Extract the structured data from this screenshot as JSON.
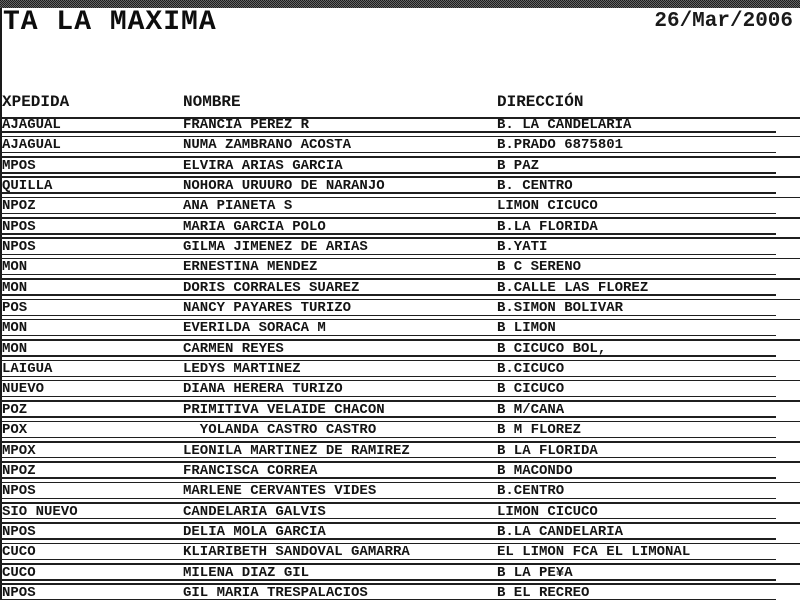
{
  "report": {
    "title": "TA LA MAXIMA",
    "date": "26/Mar/2006"
  },
  "table": {
    "columns": [
      "XPEDIDA",
      "NOMBRE",
      "DIRECCIÓN"
    ],
    "rows": [
      {
        "expedida": "AJAGUAL",
        "nombre": "FRANCIA PEREZ R",
        "direccion": "B. LA CANDELARIA"
      },
      {
        "expedida": "AJAGUAL",
        "nombre": "NUMA ZAMBRANO ACOSTA",
        "direccion": "B.PRADO 6875801"
      },
      {
        "expedida": "MPOS",
        "nombre": "ELVIRA ARIAS GARCIA",
        "direccion": "B PAZ"
      },
      {
        "expedida": "QUILLA",
        "nombre": "NOHORA URUURO DE NARANJO",
        "direccion": "B. CENTRO"
      },
      {
        "expedida": "NPOZ",
        "nombre": "ANA PIANETA S",
        "direccion": "LIMON CICUCO"
      },
      {
        "expedida": "NPOS",
        "nombre": "MARIA GARCIA POLO",
        "direccion": "B.LA FLORIDA"
      },
      {
        "expedida": "NPOS",
        "nombre": "GILMA JIMENEZ DE ARIAS",
        "direccion": "B.YATI"
      },
      {
        "expedida": "MON",
        "nombre": "ERNESTINA MENDEZ",
        "direccion": "B C SERENO"
      },
      {
        "expedida": "MON",
        "nombre": "DORIS CORRALES SUAREZ",
        "direccion": "B.CALLE LAS FLOREZ"
      },
      {
        "expedida": "POS",
        "nombre": "NANCY PAYARES TURIZO",
        "direccion": "B.SIMON BOLIVAR"
      },
      {
        "expedida": "MON",
        "nombre": "EVERILDA SORACA M",
        "direccion": "B LIMON"
      },
      {
        "expedida": "MON",
        "nombre": "CARMEN REYES",
        "direccion": "B CICUCO BOL,"
      },
      {
        "expedida": "LAIGUA",
        "nombre": "LEDYS MARTINEZ",
        "direccion": "B.CICUCO"
      },
      {
        "expedida": "NUEVO",
        "nombre": "DIANA HERERA TURIZO",
        "direccion": "B CICUCO"
      },
      {
        "expedida": "POZ",
        "nombre": "PRIMITIVA VELAIDE CHACON",
        "direccion": "B M/CANA"
      },
      {
        "expedida": "POX",
        "nombre": "  YOLANDA CASTRO CASTRO",
        "direccion": "B M FLOREZ"
      },
      {
        "expedida": "MPOX",
        "nombre": "LEONILA MARTINEZ DE RAMIREZ",
        "direccion": "B LA FLORIDA"
      },
      {
        "expedida": "NPOZ",
        "nombre": "FRANCISCA CORREA",
        "direccion": "B MACONDO"
      },
      {
        "expedida": "NPOS",
        "nombre": "MARLENE CERVANTES VIDES",
        "direccion": "B.CENTRO"
      },
      {
        "expedida": "SIO NUEVO",
        "nombre": "CANDELARIA GALVIS",
        "direccion": "LIMON CICUCO"
      },
      {
        "expedida": "NPOS",
        "nombre": "DELIA MOLA GARCIA",
        "direccion": "B.LA CANDELARIA"
      },
      {
        "expedida": "CUCO",
        "nombre": "KLIARIBETH SANDOVAL GAMARRA",
        "direccion": "EL LIMON FCA EL LIMONAL"
      },
      {
        "expedida": "CUCO",
        "nombre": "MILENA DIAZ GIL",
        "direccion": "B LA PE¥A"
      },
      {
        "expedida": "NPOS",
        "nombre": "GIL MARIA TRESPALACIOS",
        "direccion": "B EL RECREO"
      }
    ]
  },
  "colors": {
    "ink": "#141414",
    "page": "#ffffff",
    "chrome_dark": "#1e1e1e",
    "chrome_light": "#636363"
  }
}
